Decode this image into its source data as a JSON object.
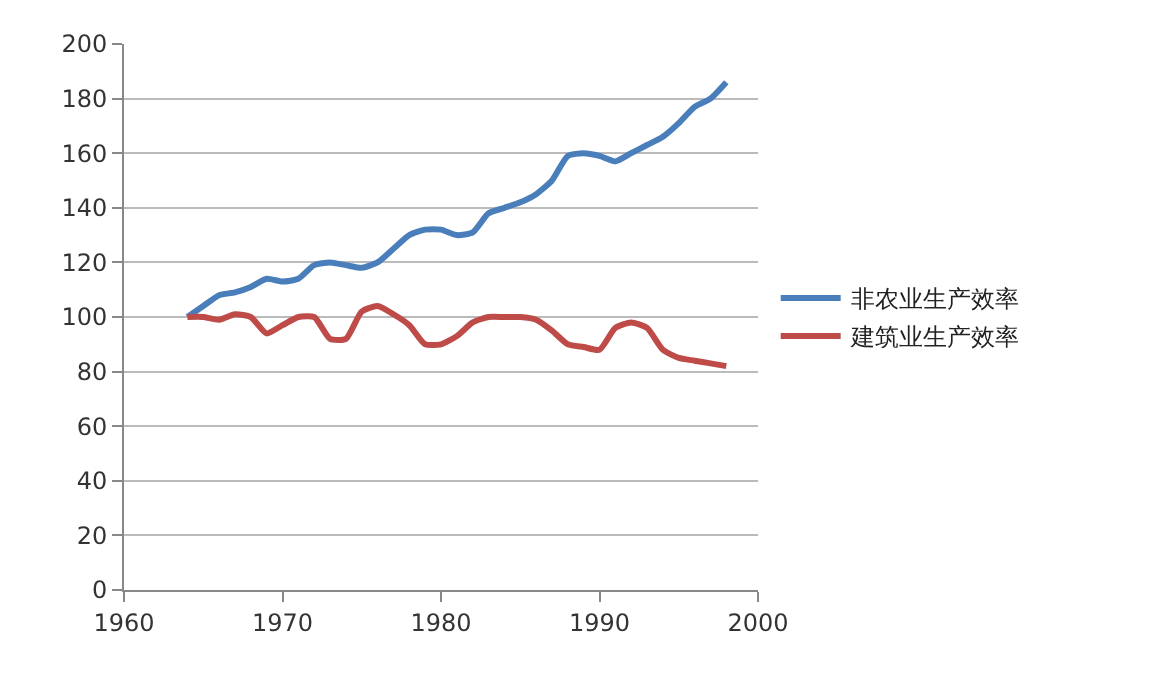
{
  "chart_data": {
    "type": "line",
    "x": [
      1964,
      1965,
      1966,
      1967,
      1968,
      1969,
      1970,
      1971,
      1972,
      1973,
      1974,
      1975,
      1976,
      1977,
      1978,
      1979,
      1980,
      1981,
      1982,
      1983,
      1984,
      1985,
      1986,
      1987,
      1988,
      1989,
      1990,
      1991,
      1992,
      1993,
      1994,
      1995,
      1996,
      1997,
      1998
    ],
    "series": [
      {
        "name": "非农业生产效率",
        "color": "#4a7ebb",
        "values": [
          100,
          104,
          108,
          109,
          111,
          114,
          113,
          114,
          119,
          120,
          119,
          118,
          120,
          125,
          130,
          132,
          132,
          130,
          131,
          138,
          140,
          142,
          145,
          150,
          159,
          160,
          159,
          157,
          160,
          163,
          166,
          171,
          177,
          180,
          186
        ]
      },
      {
        "name": "建筑业生产效率",
        "color": "#be4b48",
        "values": [
          100,
          100,
          99,
          101,
          100,
          94,
          97,
          100,
          100,
          92,
          92,
          102,
          104,
          101,
          97,
          90,
          90,
          93,
          98,
          100,
          100,
          100,
          99,
          95,
          90,
          89,
          88,
          96,
          98,
          96,
          88,
          85,
          84,
          83,
          82
        ]
      }
    ],
    "xlim": [
      1960,
      2000
    ],
    "xticks": [
      1960,
      1970,
      1980,
      1990,
      2000
    ],
    "ylim": [
      0,
      200
    ],
    "yticks": [
      0,
      20,
      40,
      60,
      80,
      100,
      120,
      140,
      160,
      180,
      200
    ],
    "grid": "y",
    "legend": "right",
    "marker": "none",
    "line_style": "solid"
  }
}
